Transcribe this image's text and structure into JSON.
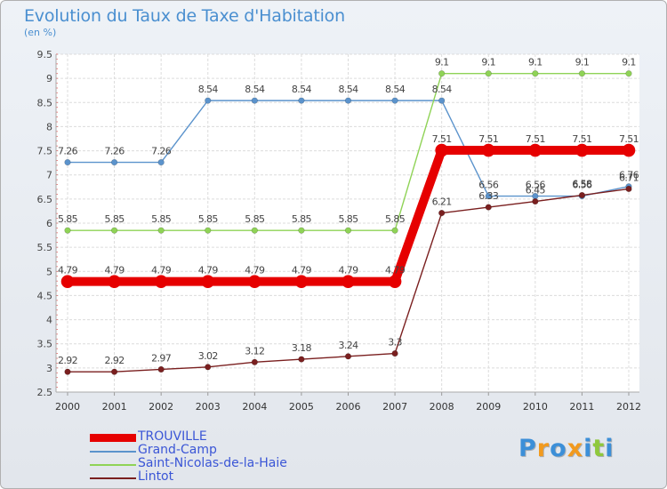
{
  "title": "Evolution du Taux de Taxe d'Habitation",
  "subtitle": "(en %)",
  "chart_data": {
    "type": "line",
    "title": "Evolution du Taux de Taxe d'Habitation",
    "ylabel": "(en %)",
    "xlabel": "",
    "categories": [
      "2000",
      "2001",
      "2002",
      "2003",
      "2004",
      "2005",
      "2006",
      "2007",
      "2008",
      "2009",
      "2010",
      "2011",
      "2012"
    ],
    "ylim": [
      2.5,
      9.5
    ],
    "yticks": [
      "2.5",
      "3",
      "3.5",
      "4",
      "4.5",
      "5",
      "5.5",
      "6",
      "6.5",
      "7",
      "7.5",
      "8",
      "8.5",
      "9",
      "9.5"
    ],
    "grid": true,
    "legend_position": "bottom-left",
    "series": [
      {
        "name": "TROUVILLE",
        "color": "#e60000",
        "values": [
          4.79,
          4.79,
          4.79,
          4.79,
          4.79,
          4.79,
          4.79,
          4.79,
          7.51,
          7.51,
          7.51,
          7.51,
          7.51
        ],
        "labels": [
          "4.79",
          "4.79",
          "4.79",
          "4.79",
          "4.79",
          "4.79",
          "4.79",
          "4.79",
          "7.51",
          "7.51",
          "7.51",
          "7.51",
          "7.51"
        ],
        "emphasis": true
      },
      {
        "name": "Grand-Camp",
        "color": "#5b93cc",
        "values": [
          7.26,
          7.26,
          7.26,
          8.54,
          8.54,
          8.54,
          8.54,
          8.54,
          8.54,
          6.56,
          6.56,
          6.56,
          6.76
        ],
        "labels": [
          "7.26",
          "7.26",
          "7.26",
          "8.54",
          "8.54",
          "8.54",
          "8.54",
          "8.54",
          "8.54",
          "6.56",
          "6.56",
          "6.56",
          "6.76"
        ],
        "emphasis": false
      },
      {
        "name": "Saint-Nicolas-de-la-Haie",
        "color": "#8fd356",
        "values": [
          5.85,
          5.85,
          5.85,
          5.85,
          5.85,
          5.85,
          5.85,
          5.85,
          9.1,
          9.1,
          9.1,
          9.1,
          9.1
        ],
        "labels": [
          "5.85",
          "5.85",
          "5.85",
          "5.85",
          "5.85",
          "5.85",
          "5.85",
          "5.85",
          "9.1",
          "9.1",
          "9.1",
          "9.1",
          "9.1"
        ],
        "emphasis": false
      },
      {
        "name": "Lintot",
        "color": "#7a1f1f",
        "values": [
          2.92,
          2.92,
          2.97,
          3.02,
          3.12,
          3.18,
          3.24,
          3.3,
          6.21,
          6.33,
          6.45,
          6.58,
          6.71
        ],
        "labels": [
          "2.92",
          "2.92",
          "2.97",
          "3.02",
          "3.12",
          "3.18",
          "3.24",
          "3.3",
          "6.21",
          "6.33",
          "6.45",
          "6.58",
          "6.71"
        ],
        "emphasis": false
      }
    ]
  },
  "logo": {
    "text": "Proxiti",
    "letters": [
      "P",
      "r",
      "o",
      "x",
      "i",
      "t",
      "i"
    ],
    "colors": [
      "#3c8fd8",
      "#f29a1e",
      "#3c8fd8",
      "#f29a1e",
      "#3c8fd8",
      "#8fc83c",
      "#3c8fd8"
    ]
  }
}
